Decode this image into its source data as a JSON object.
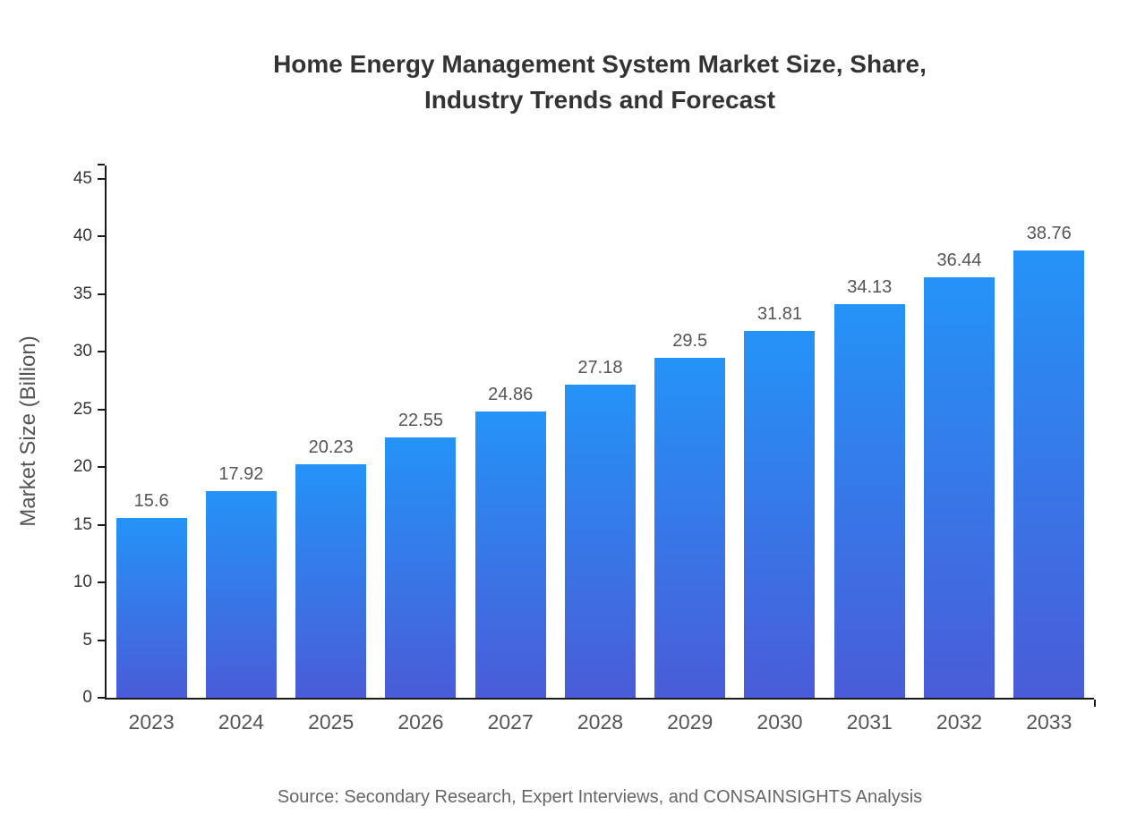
{
  "header": {
    "title_line1": "Home Energy Management System Market Size, Share,",
    "title_line2": "Industry Trends and Forecast"
  },
  "chart_data": {
    "type": "bar",
    "title": "Home Energy Management System Market Size, Share, Industry Trends and Forecast",
    "categories": [
      "2023",
      "2024",
      "2025",
      "2026",
      "2027",
      "2028",
      "2029",
      "2030",
      "2031",
      "2032",
      "2033"
    ],
    "values": [
      15.6,
      17.92,
      20.23,
      22.55,
      24.86,
      27.18,
      29.5,
      31.81,
      34.13,
      36.44,
      38.76
    ],
    "value_labels": [
      "15.6",
      "17.92",
      "20.23",
      "22.55",
      "24.86",
      "27.18",
      "29.5",
      "31.81",
      "34.13",
      "36.44",
      "38.76"
    ],
    "xlabel": "",
    "ylabel": "Market Size (Billion)",
    "ylim": [
      0,
      45
    ],
    "yticks": [
      0,
      5,
      10,
      15,
      20,
      25,
      30,
      35,
      40,
      45
    ],
    "grid": false,
    "legend": false,
    "bar_gradient_top": "#2493f7",
    "bar_gradient_bottom": "#4a5cd8"
  },
  "footer": {
    "source": "Source: Secondary Research, Expert Interviews, and CONSAINSIGHTS Analysis"
  }
}
